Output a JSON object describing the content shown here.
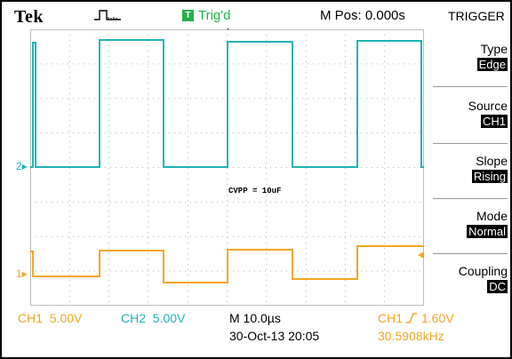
{
  "topbar": {
    "brand": "Tek",
    "trigger_icon_letter": "T",
    "trigger_status": "Trig'd",
    "m_pos": "M Pos: 0.000s",
    "menu_title": "TRIGGER"
  },
  "menu": [
    {
      "label": "Type",
      "value": "Edge"
    },
    {
      "label": "Source",
      "value": "CH1"
    },
    {
      "label": "Slope",
      "value": "Rising"
    },
    {
      "label": "Mode",
      "value": "Normal"
    },
    {
      "label": "Coupling",
      "value": "DC"
    }
  ],
  "screen": {
    "annotation": "CVPP = 10uF",
    "ch2_marker": "2",
    "ch1_marker": "1"
  },
  "bottom": {
    "ch1_scale": "CH1  5.00V",
    "ch2_scale": "CH2  5.00V",
    "timebase": "M 10.0µs",
    "date": "30-Oct-13 20:05",
    "trigger_source": "CH1",
    "trigger_level": "1.60V",
    "frequency": "30.5908kHz"
  },
  "colors": {
    "ch1": "#f5a623",
    "ch2": "#1fb4b4",
    "trigger_ok": "#22b14c"
  }
}
